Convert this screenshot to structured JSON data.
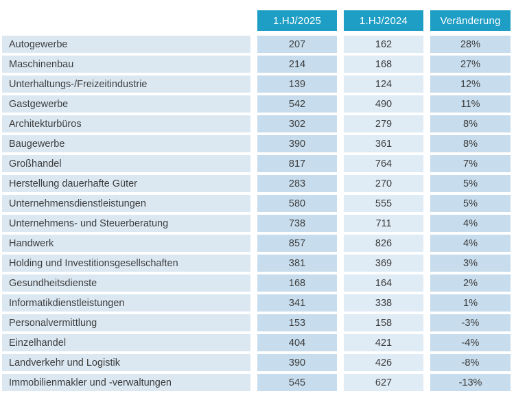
{
  "colors": {
    "header_bg": "#1E9EC4",
    "header_fg": "#FFFFFF",
    "body_fg": "#3D3D3D",
    "label_bg": "#DBE8F2",
    "col2025_bg": "#C7DCEC",
    "col2024_bg": "#DFEBF5",
    "change_bg": "#C7DCEC"
  },
  "table": {
    "columns": [
      "1.HJ/2025",
      "1.HJ/2024",
      "Veränderung"
    ],
    "rows": [
      {
        "label": "Autogewerbe",
        "v2025": "207",
        "v2024": "162",
        "change": "28%"
      },
      {
        "label": "Maschinenbau",
        "v2025": "214",
        "v2024": "168",
        "change": "27%"
      },
      {
        "label": "Unterhaltungs-/Freizeitindustrie",
        "v2025": "139",
        "v2024": "124",
        "change": "12%"
      },
      {
        "label": "Gastgewerbe",
        "v2025": "542",
        "v2024": "490",
        "change": "11%"
      },
      {
        "label": "Architekturbüros",
        "v2025": "302",
        "v2024": "279",
        "change": "8%"
      },
      {
        "label": "Baugewerbe",
        "v2025": "390",
        "v2024": "361",
        "change": "8%"
      },
      {
        "label": "Großhandel",
        "v2025": "817",
        "v2024": "764",
        "change": "7%"
      },
      {
        "label": "Herstellung dauerhafte Güter",
        "v2025": "283",
        "v2024": "270",
        "change": "5%"
      },
      {
        "label": "Unternehmensdienstleistungen",
        "v2025": "580",
        "v2024": "555",
        "change": "5%"
      },
      {
        "label": "Unternehmens- und Steuerberatung",
        "v2025": "738",
        "v2024": "711",
        "change": "4%"
      },
      {
        "label": "Handwerk",
        "v2025": "857",
        "v2024": "826",
        "change": "4%"
      },
      {
        "label": "Holding und Investitionsgesellschaften",
        "v2025": "381",
        "v2024": "369",
        "change": "3%"
      },
      {
        "label": "Gesundheitsdienste",
        "v2025": "168",
        "v2024": "164",
        "change": "2%"
      },
      {
        "label": "Informatikdienstleistungen",
        "v2025": "341",
        "v2024": "338",
        "change": "1%"
      },
      {
        "label": "Personalvermittlung",
        "v2025": "153",
        "v2024": "158",
        "change": "-3%"
      },
      {
        "label": "Einzelhandel",
        "v2025": "404",
        "v2024": "421",
        "change": "-4%"
      },
      {
        "label": "Landverkehr und Logistik",
        "v2025": "390",
        "v2024": "426",
        "change": "-8%"
      },
      {
        "label": "Immobilienmakler und -verwaltungen",
        "v2025": "545",
        "v2024": "627",
        "change": "-13%"
      }
    ]
  },
  "chart_data": {
    "type": "table",
    "title": "",
    "categories": [
      "Autogewerbe",
      "Maschinenbau",
      "Unterhaltungs-/Freizeitindustrie",
      "Gastgewerbe",
      "Architekturbüros",
      "Baugewerbe",
      "Großhandel",
      "Herstellung dauerhafte Güter",
      "Unternehmensdienstleistungen",
      "Unternehmens- und Steuerberatung",
      "Handwerk",
      "Holding und Investitionsgesellschaften",
      "Gesundheitsdienste",
      "Informatikdienstleistungen",
      "Personalvermittlung",
      "Einzelhandel",
      "Landverkehr und Logistik",
      "Immobilienmakler und -verwaltungen"
    ],
    "series": [
      {
        "name": "1.HJ/2025",
        "values": [
          207,
          214,
          139,
          542,
          302,
          390,
          817,
          283,
          580,
          738,
          857,
          381,
          168,
          341,
          153,
          404,
          390,
          545
        ]
      },
      {
        "name": "1.HJ/2024",
        "values": [
          162,
          168,
          124,
          490,
          279,
          361,
          764,
          270,
          555,
          711,
          826,
          369,
          164,
          338,
          158,
          421,
          426,
          627
        ]
      },
      {
        "name": "Veränderung",
        "values": [
          "28%",
          "27%",
          "12%",
          "11%",
          "8%",
          "8%",
          "7%",
          "5%",
          "5%",
          "4%",
          "4%",
          "3%",
          "2%",
          "1%",
          "-3%",
          "-4%",
          "-8%",
          "-13%"
        ]
      }
    ]
  }
}
